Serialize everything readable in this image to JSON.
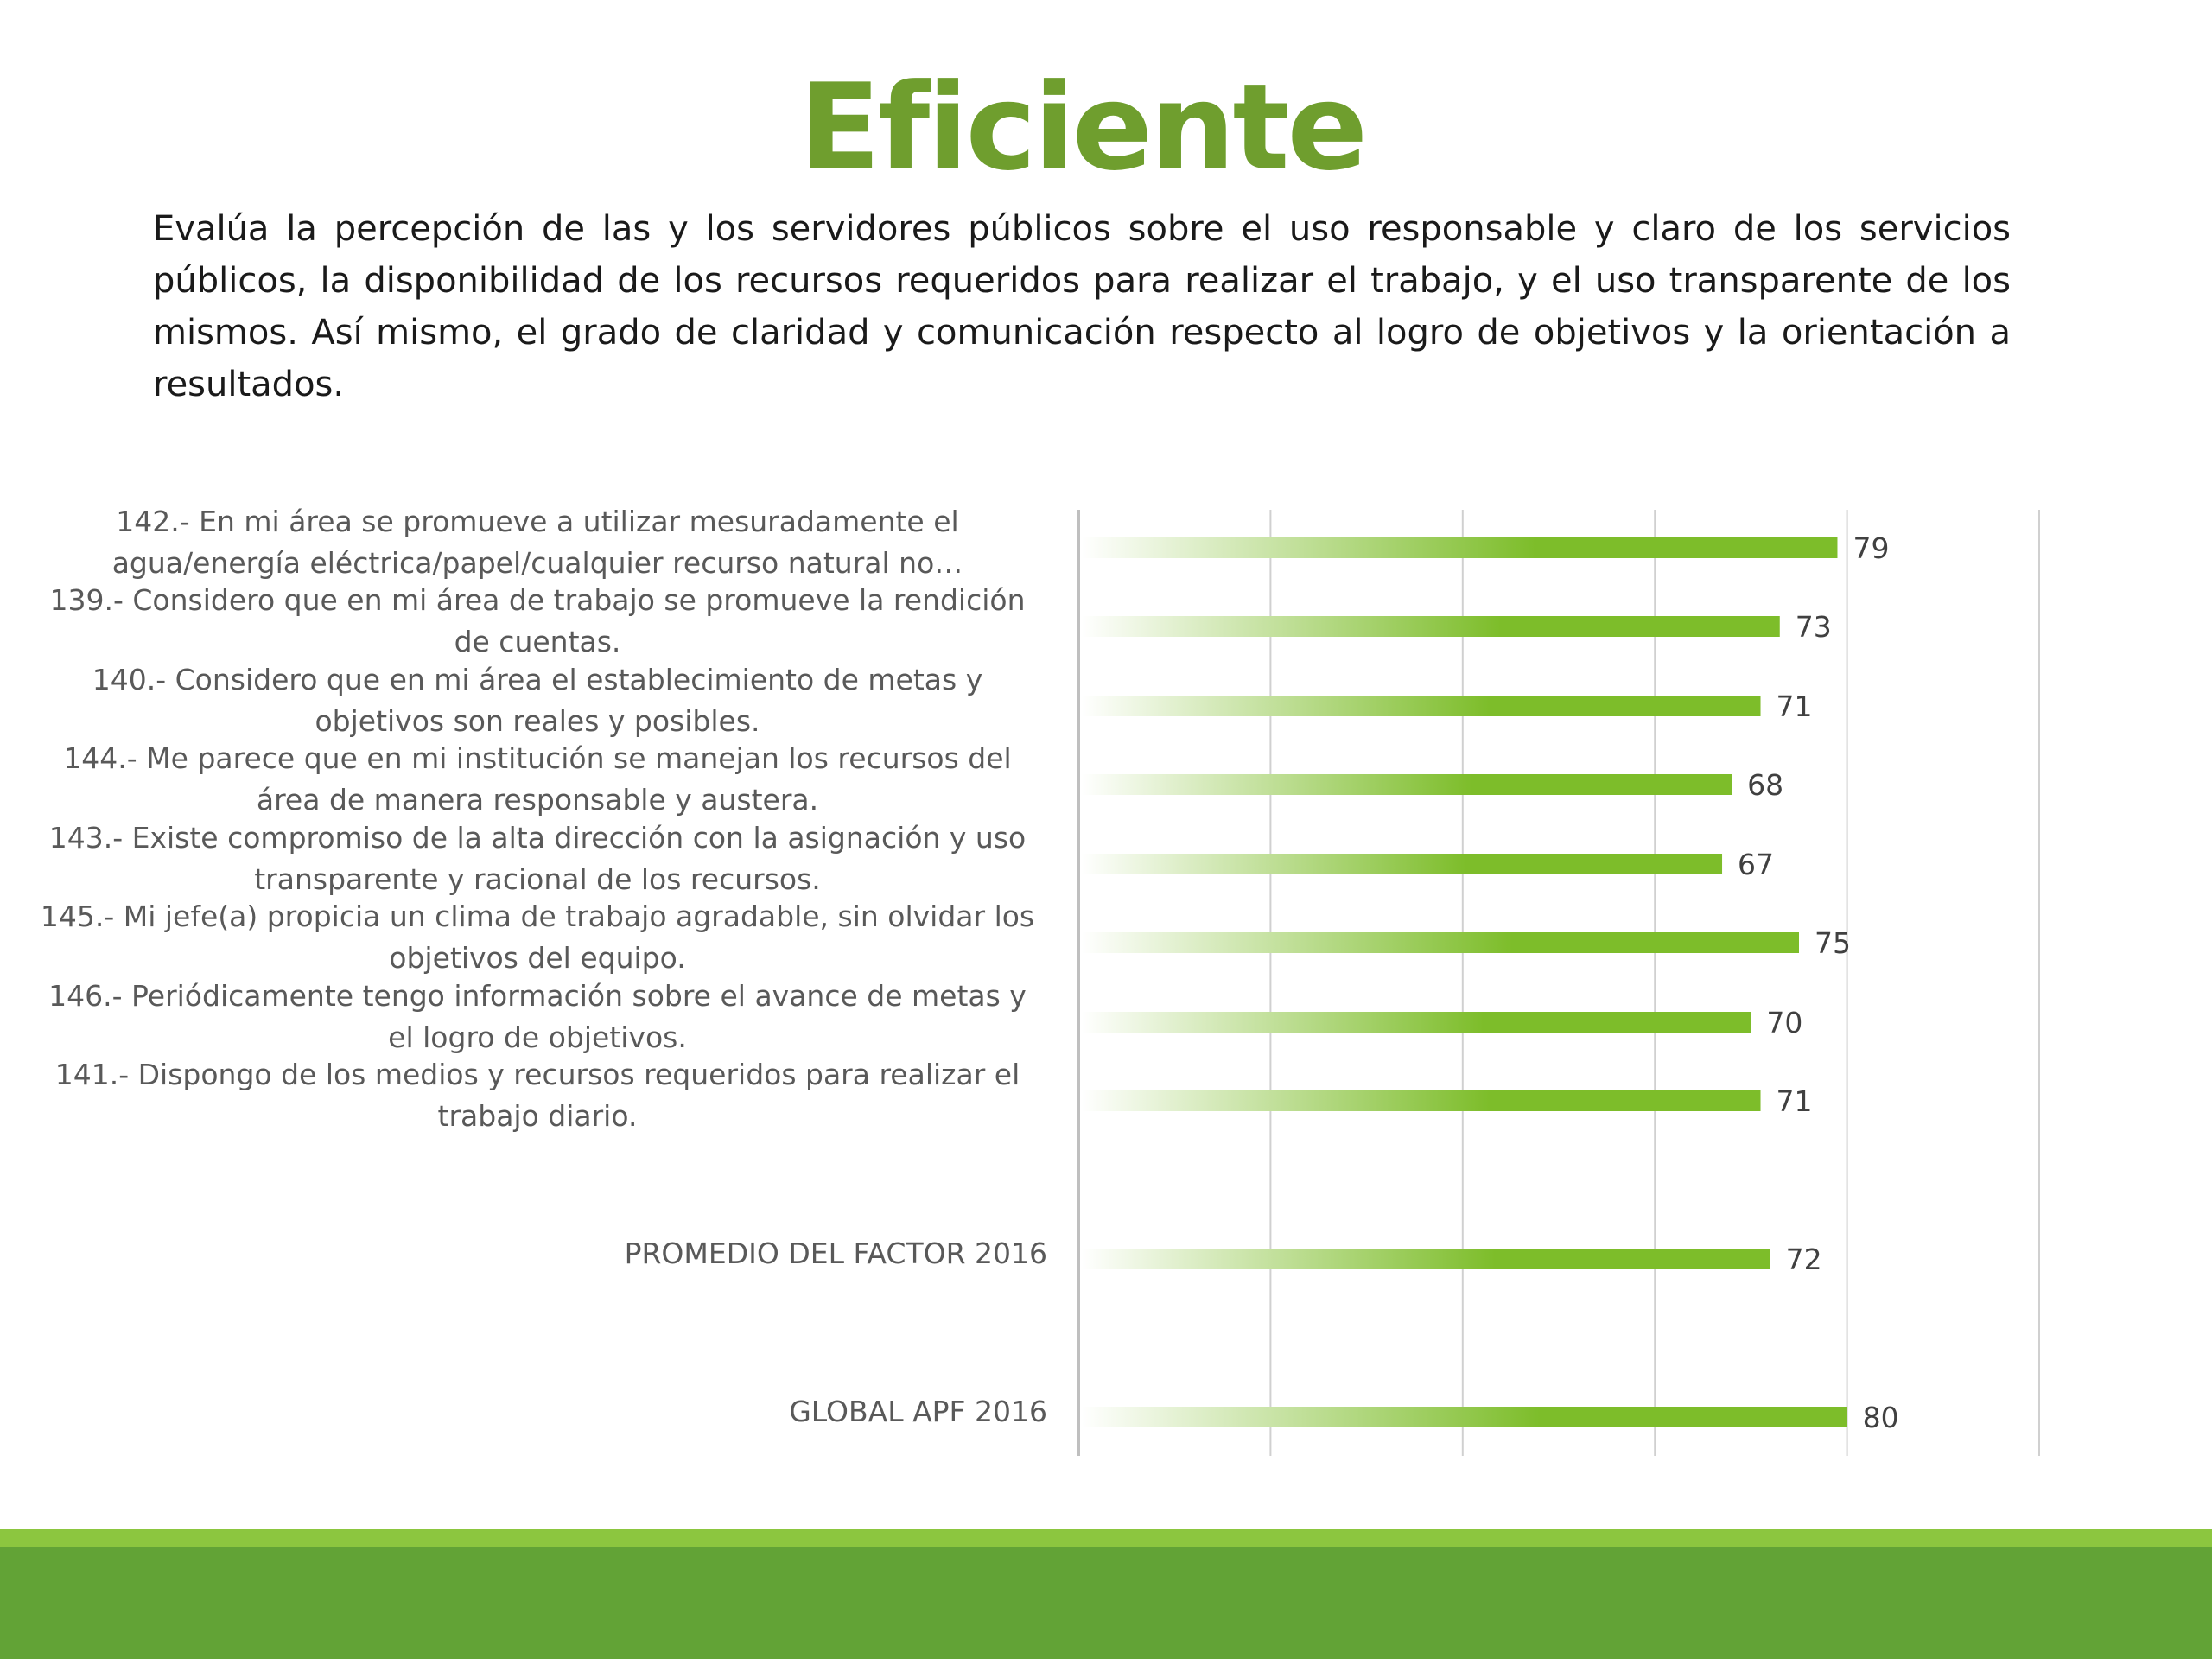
{
  "title": "Eficiente",
  "description": "Evalúa la percepción de las y los servidores públicos sobre el uso responsable y claro de los servicios públicos, la disponibilidad de los recursos requeridos para realizar el trabajo, y el uso transparente de los mismos. Así mismo, el grado de claridad y comunicación respecto al logro de objetivos y la orientación a resultados.",
  "colors": {
    "title": "#6f9e2e",
    "bar_solid": "#7dbd2a",
    "bar_fade": "#ffffff",
    "grid": "#d0d0d0",
    "axis": "#bfbfbf",
    "label": "#595959",
    "footer_light": "#8cc63f",
    "footer_dark": "#62a336"
  },
  "chart_data": {
    "type": "bar",
    "orientation": "horizontal",
    "xlim": [
      0,
      100
    ],
    "grid": true,
    "categories": [
      "142.- En mi área se promueve a utilizar mesuradamente el agua/energía eléctrica/papel/cualquier recurso natural no…",
      "139.- Considero que en mi área de trabajo se promueve la rendición de cuentas.",
      "140.- Considero que en mi área el establecimiento de metas y objetivos son reales y posibles.",
      "144.- Me parece que en mi institución se manejan los recursos del área de manera responsable y austera.",
      "143.- Existe compromiso de la alta dirección con la asignación y uso transparente y racional de los recursos.",
      "145.- Mi jefe(a) propicia un clima de trabajo agradable, sin olvidar los objetivos del equipo.",
      "146.- Periódicamente tengo información sobre el avance de metas y el logro de objetivos.",
      "141.- Dispongo de los medios y recursos requeridos para realizar el trabajo diario.",
      "PROMEDIO DEL FACTOR   2016",
      "GLOBAL APF   2016"
    ],
    "label_lines": [
      [
        "142.- En mi área se promueve a utilizar mesuradamente el",
        "agua/energía eléctrica/papel/cualquier recurso natural no…"
      ],
      [
        "139.- Considero que en mi área de trabajo se promueve la rendición",
        "de cuentas."
      ],
      [
        "140.- Considero que en mi área el establecimiento de metas y",
        "objetivos son reales y posibles."
      ],
      [
        "144.- Me parece que en mi institución se manejan los recursos del",
        "área de manera responsable y austera."
      ],
      [
        "143.- Existe compromiso de la alta dirección con la asignación y uso",
        "transparente y racional de los recursos."
      ],
      [
        "145.- Mi jefe(a) propicia un clima de trabajo agradable, sin olvidar los",
        "objetivos del equipo."
      ],
      [
        "146.- Periódicamente tengo información sobre el avance de metas y",
        "el logro de objetivos."
      ],
      [
        "141.- Dispongo de los medios y recursos requeridos para realizar el",
        "trabajo diario."
      ],
      [
        "PROMEDIO DEL FACTOR   2016"
      ],
      [
        "GLOBAL APF   2016"
      ]
    ],
    "values": [
      79,
      73,
      71,
      68,
      67,
      75,
      70,
      71,
      72,
      80
    ]
  }
}
